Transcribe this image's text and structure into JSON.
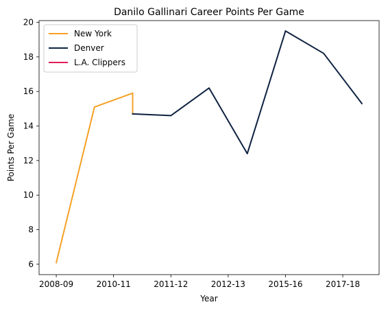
{
  "chart_data": {
    "type": "line",
    "title": "Danilo Gallinari Career Points Per Game",
    "xlabel": "Year",
    "ylabel": "Points Per Game",
    "x_tick_labels": [
      "2008-09",
      "2010-11",
      "2011-12",
      "2012-13",
      "2015-16",
      "2017-18"
    ],
    "x_tick_positions": [
      0,
      1.5,
      3,
      4.5,
      6,
      7.5
    ],
    "xlim": [
      -0.45,
      8.45
    ],
    "ylim": [
      5.4,
      20.1
    ],
    "y_ticks": [
      6,
      8,
      10,
      12,
      14,
      16,
      18,
      20
    ],
    "grid": false,
    "legend_position": "top-left",
    "series": [
      {
        "name": "New York",
        "color": "#F5A025",
        "x": [
          0,
          1,
          2,
          2
        ],
        "y": [
          6.1,
          15.1,
          15.9,
          14.7
        ]
      },
      {
        "name": "Denver",
        "color": "#0E2240",
        "x": [
          2,
          3,
          4,
          5,
          6,
          7,
          8
        ],
        "y": [
          14.7,
          14.6,
          16.2,
          12.4,
          19.5,
          18.2,
          15.3
        ]
      },
      {
        "name": "L.A. Clippers",
        "color": "#E31B5A",
        "x": [],
        "y": []
      }
    ]
  }
}
